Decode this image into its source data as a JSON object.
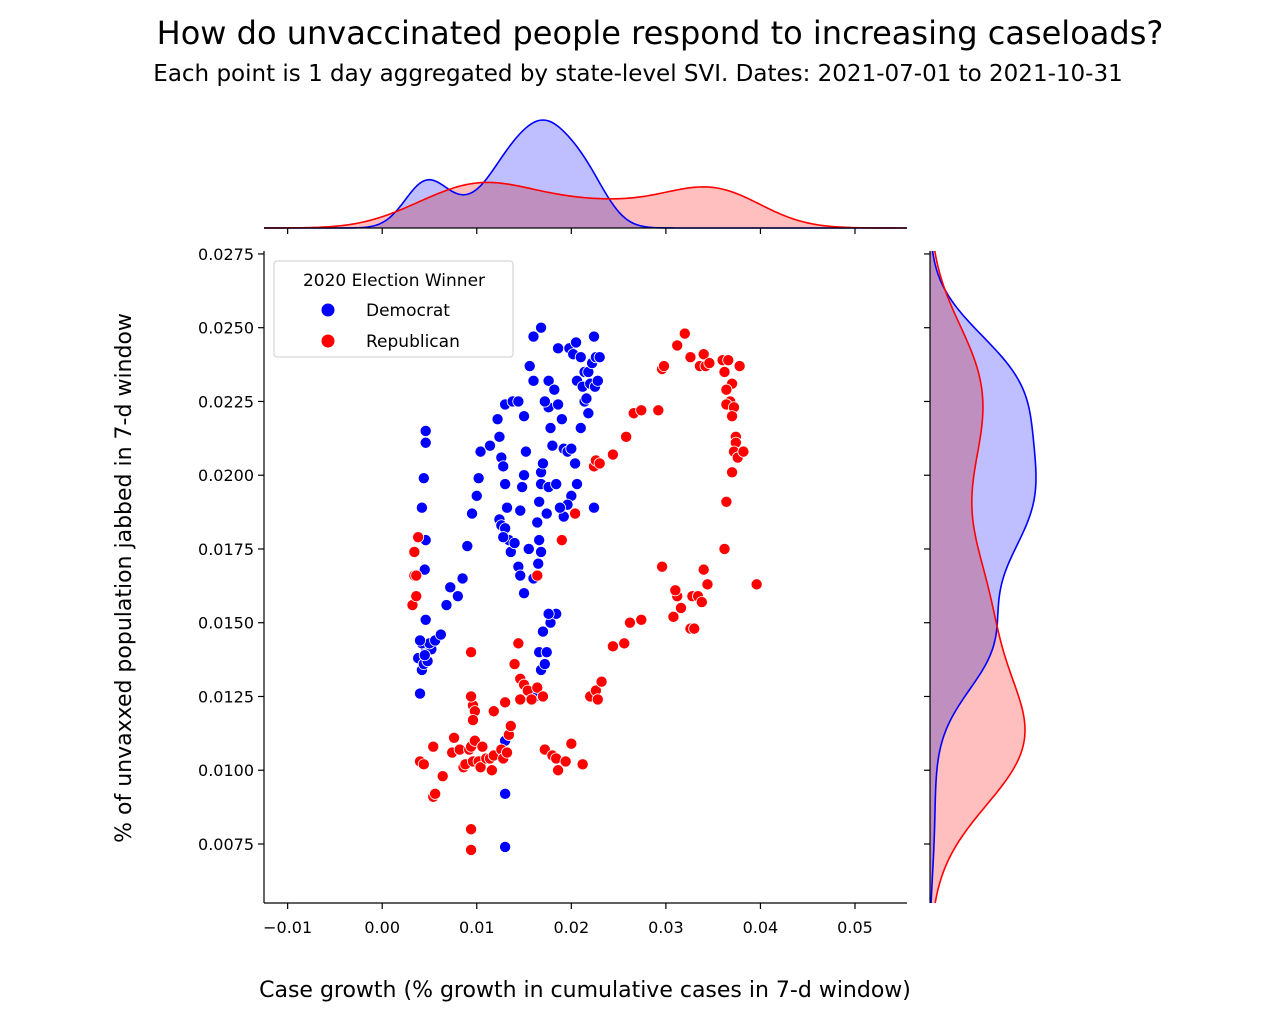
{
  "chart_data": {
    "type": "scatter",
    "title": "How do unvaccinated people respond to increasing caseloads?",
    "subtitle": "Each point is 1 day aggregated by state-level SVI. Dates: 2021-07-01 to 2021-10-31",
    "xlabel": "Case growth (% growth in cumulative cases in 7-d window)",
    "ylabel": "% of unvaxxed population jabbed in 7-d window",
    "xlim": [
      -0.0125,
      0.0555
    ],
    "ylim": [
      0.0055,
      0.0276
    ],
    "x_ticks": [
      -0.01,
      0.0,
      0.01,
      0.02,
      0.03,
      0.04,
      0.05
    ],
    "x_tick_labels": [
      "−0.01",
      "0.00",
      "0.01",
      "0.02",
      "0.03",
      "0.04",
      "0.05"
    ],
    "y_ticks": [
      0.0075,
      0.01,
      0.0125,
      0.015,
      0.0175,
      0.02,
      0.0225,
      0.025,
      0.0275
    ],
    "y_tick_labels": [
      "0.0075",
      "0.0100",
      "0.0125",
      "0.0150",
      "0.0175",
      "0.0200",
      "0.0225",
      "0.0250",
      "0.0275"
    ],
    "grid": false,
    "legend": {
      "title": "2020 Election Winner",
      "position": "top-left"
    },
    "marginals": {
      "top": "kde of x by group",
      "right": "kde of y by group"
    },
    "series": [
      {
        "name": "Democrat",
        "color": "#0000ff",
        "fill": "#b8b8ff",
        "points": [
          [
            0.004,
            0.0126
          ],
          [
            0.0042,
            0.0134
          ],
          [
            0.0038,
            0.0138
          ],
          [
            0.0044,
            0.0136
          ],
          [
            0.0048,
            0.0137
          ],
          [
            0.0046,
            0.014
          ],
          [
            0.0052,
            0.0141
          ],
          [
            0.0042,
            0.0143
          ],
          [
            0.005,
            0.0143
          ],
          [
            0.0056,
            0.0144
          ],
          [
            0.0062,
            0.0146
          ],
          [
            0.0046,
            0.0151
          ],
          [
            0.004,
            0.0144
          ],
          [
            0.0045,
            0.0139
          ],
          [
            0.0045,
            0.0168
          ],
          [
            0.0046,
            0.0178
          ],
          [
            0.0042,
            0.0189
          ],
          [
            0.0044,
            0.0199
          ],
          [
            0.0046,
            0.0211
          ],
          [
            0.0046,
            0.0215
          ],
          [
            0.0068,
            0.0156
          ],
          [
            0.0072,
            0.0162
          ],
          [
            0.008,
            0.0159
          ],
          [
            0.0085,
            0.0165
          ],
          [
            0.009,
            0.0176
          ],
          [
            0.0095,
            0.0187
          ],
          [
            0.01,
            0.0193
          ],
          [
            0.0102,
            0.0199
          ],
          [
            0.0104,
            0.0208
          ],
          [
            0.0114,
            0.021
          ],
          [
            0.0124,
            0.0213
          ],
          [
            0.0122,
            0.0219
          ],
          [
            0.013,
            0.0224
          ],
          [
            0.0138,
            0.0225
          ],
          [
            0.0144,
            0.0225
          ],
          [
            0.015,
            0.022
          ],
          [
            0.0126,
            0.0206
          ],
          [
            0.0128,
            0.0203
          ],
          [
            0.013,
            0.0197
          ],
          [
            0.0132,
            0.0189
          ],
          [
            0.0124,
            0.0185
          ],
          [
            0.0126,
            0.0183
          ],
          [
            0.013,
            0.0182
          ],
          [
            0.0134,
            0.0178
          ],
          [
            0.0128,
            0.0179
          ],
          [
            0.0136,
            0.0174
          ],
          [
            0.014,
            0.0177
          ],
          [
            0.0146,
            0.0188
          ],
          [
            0.0148,
            0.0196
          ],
          [
            0.015,
            0.02
          ],
          [
            0.0152,
            0.0208
          ],
          [
            0.0155,
            0.0175
          ],
          [
            0.0144,
            0.0169
          ],
          [
            0.0146,
            0.0166
          ],
          [
            0.015,
            0.016
          ],
          [
            0.016,
            0.0165
          ],
          [
            0.0165,
            0.017
          ],
          [
            0.0168,
            0.0174
          ],
          [
            0.0166,
            0.0178
          ],
          [
            0.0164,
            0.0184
          ],
          [
            0.0166,
            0.0191
          ],
          [
            0.0168,
            0.0197
          ],
          [
            0.0168,
            0.0201
          ],
          [
            0.017,
            0.0204
          ],
          [
            0.0174,
            0.0187
          ],
          [
            0.0176,
            0.0196
          ],
          [
            0.018,
            0.021
          ],
          [
            0.0178,
            0.0216
          ],
          [
            0.0176,
            0.0223
          ],
          [
            0.0156,
            0.0237
          ],
          [
            0.016,
            0.0232
          ],
          [
            0.0172,
            0.0225
          ],
          [
            0.0176,
            0.0232
          ],
          [
            0.0182,
            0.0229
          ],
          [
            0.0186,
            0.0224
          ],
          [
            0.019,
            0.0219
          ],
          [
            0.0192,
            0.0209
          ],
          [
            0.0196,
            0.0208
          ],
          [
            0.016,
            0.0247
          ],
          [
            0.0168,
            0.025
          ],
          [
            0.0186,
            0.0243
          ],
          [
            0.0198,
            0.0243
          ],
          [
            0.0202,
            0.0241
          ],
          [
            0.0205,
            0.0245
          ],
          [
            0.021,
            0.024
          ],
          [
            0.0214,
            0.0235
          ],
          [
            0.0218,
            0.0235
          ],
          [
            0.0222,
            0.0238
          ],
          [
            0.0224,
            0.0247
          ],
          [
            0.0226,
            0.024
          ],
          [
            0.0206,
            0.0232
          ],
          [
            0.0212,
            0.023
          ],
          [
            0.0214,
            0.0225
          ],
          [
            0.0216,
            0.0226
          ],
          [
            0.022,
            0.0231
          ],
          [
            0.0225,
            0.023
          ],
          [
            0.0228,
            0.0232
          ],
          [
            0.023,
            0.024
          ],
          [
            0.0218,
            0.0221
          ],
          [
            0.021,
            0.0216
          ],
          [
            0.02,
            0.0209
          ],
          [
            0.0204,
            0.0204
          ],
          [
            0.0206,
            0.0197
          ],
          [
            0.02,
            0.0193
          ],
          [
            0.0196,
            0.019
          ],
          [
            0.0192,
            0.0186
          ],
          [
            0.0188,
            0.0189
          ],
          [
            0.0184,
            0.0197
          ],
          [
            0.0224,
            0.0189
          ],
          [
            0.0162,
            0.0125
          ],
          [
            0.0168,
            0.0134
          ],
          [
            0.0172,
            0.0136
          ],
          [
            0.0166,
            0.014
          ],
          [
            0.0174,
            0.014
          ],
          [
            0.017,
            0.0147
          ],
          [
            0.0178,
            0.015
          ],
          [
            0.0184,
            0.0153
          ],
          [
            0.0176,
            0.0153
          ],
          [
            0.013,
            0.011
          ],
          [
            0.013,
            0.0092
          ],
          [
            0.013,
            0.0074
          ]
        ]
      },
      {
        "name": "Republican",
        "color": "#ff0000",
        "fill": "#ffb8b8",
        "points": [
          [
            0.0032,
            0.0156
          ],
          [
            0.0036,
            0.0159
          ],
          [
            0.0034,
            0.0166
          ],
          [
            0.0036,
            0.0166
          ],
          [
            0.0034,
            0.0174
          ],
          [
            0.0038,
            0.0179
          ],
          [
            0.004,
            0.0103
          ],
          [
            0.0044,
            0.0102
          ],
          [
            0.0054,
            0.0108
          ],
          [
            0.0054,
            0.0091
          ],
          [
            0.0056,
            0.0092
          ],
          [
            0.0064,
            0.0098
          ],
          [
            0.0074,
            0.0106
          ],
          [
            0.0076,
            0.0111
          ],
          [
            0.0082,
            0.0107
          ],
          [
            0.0086,
            0.0101
          ],
          [
            0.0088,
            0.0102
          ],
          [
            0.0092,
            0.0107
          ],
          [
            0.0094,
            0.0108
          ],
          [
            0.0096,
            0.0103
          ],
          [
            0.0098,
            0.011
          ],
          [
            0.0102,
            0.0103
          ],
          [
            0.0104,
            0.0101
          ],
          [
            0.0106,
            0.0108
          ],
          [
            0.011,
            0.0104
          ],
          [
            0.0114,
            0.0104
          ],
          [
            0.0116,
            0.01
          ],
          [
            0.0118,
            0.0105
          ],
          [
            0.0094,
            0.008
          ],
          [
            0.0094,
            0.0073
          ],
          [
            0.0094,
            0.014
          ],
          [
            0.0096,
            0.0122
          ],
          [
            0.0098,
            0.012
          ],
          [
            0.0096,
            0.0117
          ],
          [
            0.0094,
            0.0125
          ],
          [
            0.0118,
            0.012
          ],
          [
            0.013,
            0.0123
          ],
          [
            0.0126,
            0.0107
          ],
          [
            0.0128,
            0.0104
          ],
          [
            0.0132,
            0.0106
          ],
          [
            0.0134,
            0.0112
          ],
          [
            0.0136,
            0.0115
          ],
          [
            0.014,
            0.0136
          ],
          [
            0.0144,
            0.0143
          ],
          [
            0.0146,
            0.0131
          ],
          [
            0.015,
            0.0129
          ],
          [
            0.0154,
            0.0127
          ],
          [
            0.0158,
            0.0124
          ],
          [
            0.0164,
            0.0128
          ],
          [
            0.017,
            0.0125
          ],
          [
            0.0146,
            0.0124
          ],
          [
            0.0164,
            0.0166
          ],
          [
            0.019,
            0.0178
          ],
          [
            0.0204,
            0.0187
          ],
          [
            0.0172,
            0.0107
          ],
          [
            0.018,
            0.0105
          ],
          [
            0.0184,
            0.0104
          ],
          [
            0.0186,
            0.01
          ],
          [
            0.0194,
            0.0103
          ],
          [
            0.02,
            0.0109
          ],
          [
            0.0212,
            0.0102
          ],
          [
            0.022,
            0.0125
          ],
          [
            0.0226,
            0.0127
          ],
          [
            0.0228,
            0.0124
          ],
          [
            0.0232,
            0.013
          ],
          [
            0.0244,
            0.0142
          ],
          [
            0.0256,
            0.0143
          ],
          [
            0.0262,
            0.015
          ],
          [
            0.0274,
            0.0151
          ],
          [
            0.0296,
            0.0169
          ],
          [
            0.0224,
            0.0203
          ],
          [
            0.0226,
            0.0205
          ],
          [
            0.023,
            0.0204
          ],
          [
            0.0244,
            0.0207
          ],
          [
            0.0258,
            0.0213
          ],
          [
            0.0266,
            0.0221
          ],
          [
            0.0274,
            0.0222
          ],
          [
            0.0292,
            0.0222
          ],
          [
            0.0296,
            0.0236
          ],
          [
            0.0298,
            0.0237
          ],
          [
            0.0312,
            0.0244
          ],
          [
            0.032,
            0.0248
          ],
          [
            0.0326,
            0.024
          ],
          [
            0.0336,
            0.0237
          ],
          [
            0.034,
            0.0241
          ],
          [
            0.0342,
            0.0237
          ],
          [
            0.0346,
            0.0238
          ],
          [
            0.036,
            0.0239
          ],
          [
            0.0366,
            0.0239
          ],
          [
            0.0362,
            0.0235
          ],
          [
            0.037,
            0.0231
          ],
          [
            0.0378,
            0.0237
          ],
          [
            0.0364,
            0.0229
          ],
          [
            0.0368,
            0.0225
          ],
          [
            0.0364,
            0.0224
          ],
          [
            0.0372,
            0.0223
          ],
          [
            0.037,
            0.022
          ],
          [
            0.0374,
            0.0213
          ],
          [
            0.0374,
            0.0211
          ],
          [
            0.0372,
            0.0208
          ],
          [
            0.0376,
            0.0206
          ],
          [
            0.0382,
            0.0208
          ],
          [
            0.037,
            0.0201
          ],
          [
            0.0364,
            0.0191
          ],
          [
            0.0362,
            0.0175
          ],
          [
            0.0308,
            0.0152
          ],
          [
            0.0312,
            0.0159
          ],
          [
            0.031,
            0.0161
          ],
          [
            0.0316,
            0.0155
          ],
          [
            0.0326,
            0.0148
          ],
          [
            0.033,
            0.0148
          ],
          [
            0.0328,
            0.0159
          ],
          [
            0.0334,
            0.0159
          ],
          [
            0.0338,
            0.0157
          ],
          [
            0.034,
            0.0168
          ],
          [
            0.0344,
            0.0163
          ],
          [
            0.0396,
            0.0163
          ]
        ]
      }
    ]
  }
}
